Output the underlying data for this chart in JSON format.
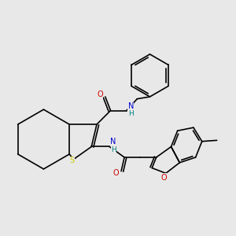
{
  "background_color": "#e8e8e8",
  "atom_colors": {
    "C": "#000000",
    "N": "#0000cc",
    "O": "#cc0000",
    "S": "#cccc00",
    "H": "#008080"
  },
  "bond_color": "#000000",
  "figsize": [
    3.0,
    3.0
  ],
  "dpi": 100
}
